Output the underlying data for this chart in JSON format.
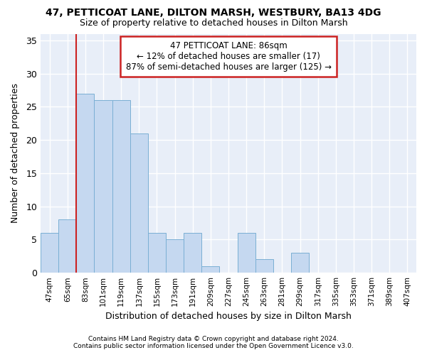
{
  "title1": "47, PETTICOAT LANE, DILTON MARSH, WESTBURY, BA13 4DG",
  "title2": "Size of property relative to detached houses in Dilton Marsh",
  "xlabel": "Distribution of detached houses by size in Dilton Marsh",
  "ylabel": "Number of detached properties",
  "categories": [
    "47sqm",
    "65sqm",
    "83sqm",
    "101sqm",
    "119sqm",
    "137sqm",
    "155sqm",
    "173sqm",
    "191sqm",
    "209sqm",
    "227sqm",
    "245sqm",
    "263sqm",
    "281sqm",
    "299sqm",
    "317sqm",
    "335sqm",
    "353sqm",
    "371sqm",
    "389sqm",
    "407sqm"
  ],
  "values": [
    6,
    8,
    27,
    26,
    26,
    21,
    6,
    5,
    6,
    1,
    0,
    6,
    2,
    0,
    3,
    0,
    0,
    0,
    0,
    0,
    0
  ],
  "bar_color": "#c5d8f0",
  "bar_edge_color": "#7aafd4",
  "vline_x_index": 2,
  "vline_color": "#cc2222",
  "annotation_text": "47 PETTICOAT LANE: 86sqm\n← 12% of detached houses are smaller (17)\n87% of semi-detached houses are larger (125) →",
  "annotation_box_facecolor": "#ffffff",
  "annotation_box_edgecolor": "#cc2222",
  "ylim": [
    0,
    36
  ],
  "yticks": [
    0,
    5,
    10,
    15,
    20,
    25,
    30,
    35
  ],
  "plot_bg_color": "#e8eef8",
  "fig_bg_color": "#ffffff",
  "grid_color": "#ffffff",
  "footer": "Contains HM Land Registry data © Crown copyright and database right 2024.\nContains public sector information licensed under the Open Government Licence v3.0."
}
